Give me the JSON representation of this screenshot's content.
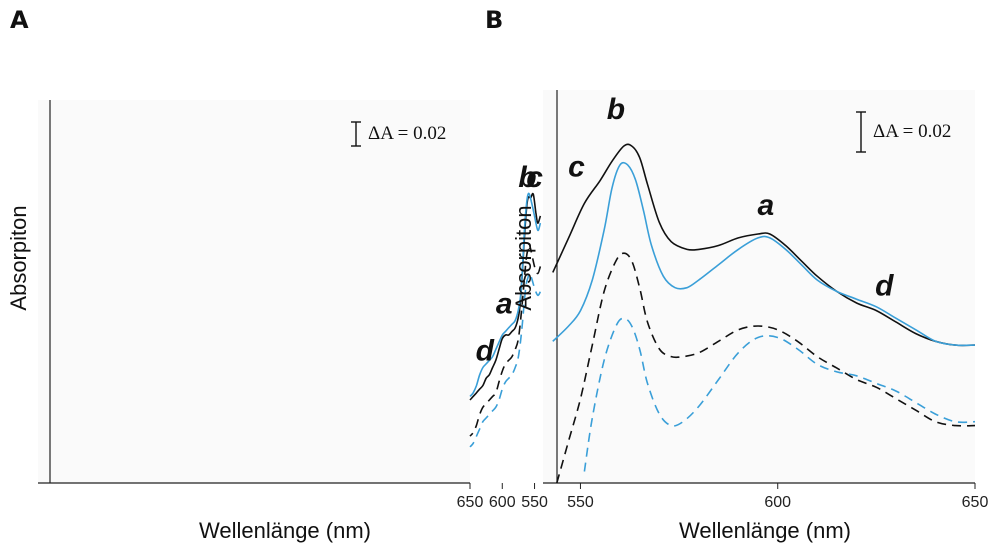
{
  "panels": [
    {
      "letter": "A",
      "chart_data": {
        "type": "line",
        "xlabel": "Wellenlänge (nm)",
        "ylabel": "Absorpiton",
        "xlim": [
          540,
          650
        ],
        "ylim": [
          0,
          1
        ],
        "xticks": [
          550,
          600,
          650
        ],
        "scale_bar_label": "ΔA = 0.02",
        "scale_bar_delta": 0.02,
        "series": [
          {
            "style": "solid",
            "color": "#111111",
            "x": [
              541,
              545,
              548,
              552,
              556,
              560,
              563,
              566,
              569,
              572,
              575,
              580,
              585,
              590,
              595,
              600,
              605,
              610,
              615,
              620,
              625,
              630,
              635,
              640,
              645,
              650
            ],
            "y": [
              0.74,
              0.72,
              0.75,
              0.8,
              0.79,
              0.79,
              0.75,
              0.67,
              0.58,
              0.5,
              0.46,
              0.43,
              0.42,
              0.41,
              0.41,
              0.4,
              0.37,
              0.34,
              0.32,
              0.3,
              0.29,
              0.27,
              0.26,
              0.25,
              0.24,
              0.23
            ]
          },
          {
            "style": "solid",
            "color": "#3a9fd8",
            "x": [
              541,
              545,
              550,
              555,
              558,
              560,
              562,
              565,
              568,
              571,
              575,
              580,
              585,
              590,
              595,
              600,
              605,
              610,
              615,
              620,
              625,
              630,
              635,
              640,
              645,
              650
            ],
            "y": [
              0.72,
              0.7,
              0.74,
              0.78,
              0.8,
              0.8,
              0.78,
              0.72,
              0.62,
              0.53,
              0.48,
              0.45,
              0.44,
              0.43,
              0.42,
              0.41,
              0.39,
              0.37,
              0.35,
              0.34,
              0.33,
              0.32,
              0.3,
              0.27,
              0.25,
              0.24
            ]
          },
          {
            "style": "dashed",
            "color": "#111111",
            "x": [
              541,
              545,
              550,
              555,
              558,
              560,
              563,
              566,
              570,
              575,
              580,
              585,
              590,
              595,
              600,
              605,
              610,
              615,
              620,
              625,
              630,
              635,
              640,
              645,
              650
            ],
            "y": [
              0.6,
              0.58,
              0.6,
              0.64,
              0.66,
              0.65,
              0.62,
              0.56,
              0.48,
              0.4,
              0.37,
              0.35,
              0.34,
              0.33,
              0.31,
              0.28,
              0.25,
              0.24,
              0.23,
              0.22,
              0.21,
              0.19,
              0.16,
              0.14,
              0.13
            ]
          },
          {
            "style": "dashed",
            "color": "#3a9fd8",
            "x": [
              541,
              545,
              550,
              555,
              558,
              560,
              563,
              566,
              570,
              575,
              580,
              585,
              590,
              595,
              600,
              605,
              610,
              615,
              620,
              625,
              630,
              635,
              640,
              645,
              650
            ],
            "y": [
              0.53,
              0.52,
              0.54,
              0.57,
              0.58,
              0.57,
              0.55,
              0.5,
              0.42,
              0.35,
              0.32,
              0.3,
              0.29,
              0.28,
              0.26,
              0.23,
              0.21,
              0.2,
              0.19,
              0.18,
              0.17,
              0.15,
              0.13,
              0.11,
              0.1
            ]
          }
        ],
        "annotations": [
          {
            "text": "c",
            "x": 550,
            "y": 0.82
          },
          {
            "text": "b",
            "x": 561,
            "y": 0.82
          },
          {
            "text": "a",
            "x": 597,
            "y": 0.47
          },
          {
            "text": "d",
            "x": 627,
            "y": 0.34
          }
        ]
      }
    },
    {
      "letter": "B",
      "chart_data": {
        "type": "line",
        "xlabel": "Wellenlänge (nm)",
        "ylabel": "Absorpiton",
        "xlim": [
          540,
          650
        ],
        "ylim": [
          0,
          1
        ],
        "xticks": [
          550,
          600,
          650
        ],
        "scale_bar_label": "ΔA = 0.02",
        "scale_bar_delta": 0.02,
        "series": [
          {
            "style": "solid",
            "color": "#111111",
            "x": [
              543,
              547,
              551,
              555,
              558,
              561,
              563,
              565,
              567,
              570,
              573,
              577,
              580,
              585,
              590,
              595,
              598,
              602,
              606,
              610,
              615,
              620,
              625,
              630,
              635,
              640,
              645,
              650
            ],
            "y": [
              0.55,
              0.64,
              0.73,
              0.79,
              0.84,
              0.88,
              0.88,
              0.85,
              0.78,
              0.68,
              0.63,
              0.61,
              0.61,
              0.62,
              0.64,
              0.65,
              0.65,
              0.62,
              0.58,
              0.54,
              0.5,
              0.47,
              0.45,
              0.42,
              0.39,
              0.37,
              0.36,
              0.36
            ]
          },
          {
            "style": "solid",
            "color": "#3a9fd8",
            "x": [
              543,
              547,
              550,
              553,
              556,
              558,
              560,
              562,
              564,
              566,
              568,
              571,
              574,
              577,
              580,
              585,
              590,
              595,
              598,
              602,
              606,
              610,
              615,
              620,
              625,
              630,
              635,
              640,
              645,
              650
            ],
            "y": [
              0.37,
              0.41,
              0.45,
              0.53,
              0.66,
              0.77,
              0.83,
              0.83,
              0.79,
              0.71,
              0.62,
              0.54,
              0.51,
              0.51,
              0.53,
              0.57,
              0.61,
              0.64,
              0.64,
              0.61,
              0.57,
              0.53,
              0.5,
              0.48,
              0.46,
              0.43,
              0.4,
              0.37,
              0.36,
              0.36
            ]
          },
          {
            "style": "dashed",
            "color": "#111111",
            "x": [
              544,
              547,
              550,
              553,
              556,
              559,
              561,
              563,
              565,
              567,
              570,
              573,
              576,
              580,
              585,
              590,
              595,
              600,
              605,
              610,
              615,
              620,
              625,
              630,
              635,
              640,
              645,
              650
            ],
            "y": [
              0.0,
              0.11,
              0.22,
              0.36,
              0.5,
              0.58,
              0.6,
              0.58,
              0.51,
              0.42,
              0.35,
              0.33,
              0.33,
              0.34,
              0.37,
              0.4,
              0.41,
              0.4,
              0.37,
              0.33,
              0.3,
              0.27,
              0.25,
              0.22,
              0.19,
              0.16,
              0.15,
              0.15
            ]
          },
          {
            "style": "dashed",
            "color": "#3a9fd8",
            "x": [
              551,
              553,
              556,
              559,
              561,
              563,
              565,
              567,
              570,
              573,
              576,
              580,
              585,
              590,
              595,
              600,
              605,
              610,
              615,
              620,
              625,
              630,
              635,
              640,
              645,
              650
            ],
            "y": [
              0.03,
              0.17,
              0.32,
              0.41,
              0.43,
              0.41,
              0.35,
              0.26,
              0.18,
              0.15,
              0.16,
              0.2,
              0.27,
              0.34,
              0.38,
              0.38,
              0.35,
              0.31,
              0.29,
              0.28,
              0.26,
              0.24,
              0.21,
              0.18,
              0.16,
              0.16
            ]
          }
        ],
        "annotations": [
          {
            "text": "c",
            "x": 549,
            "y": 0.8
          },
          {
            "text": "b",
            "x": 559,
            "y": 0.95
          },
          {
            "text": "a",
            "x": 597,
            "y": 0.7
          },
          {
            "text": "d",
            "x": 627,
            "y": 0.49
          }
        ]
      }
    }
  ]
}
